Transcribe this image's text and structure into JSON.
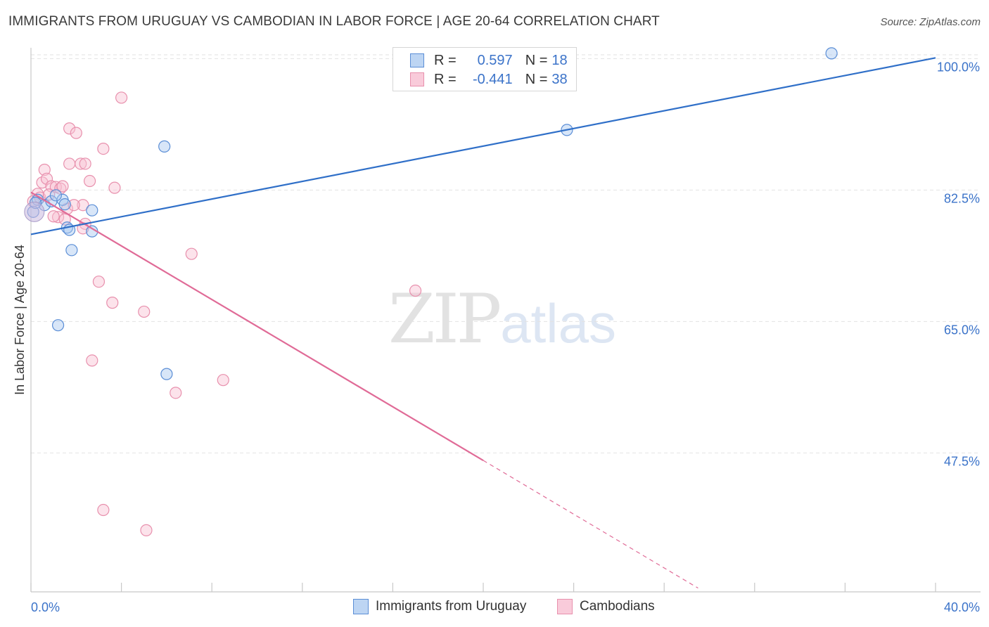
{
  "title": "IMMIGRANTS FROM URUGUAY VS CAMBODIAN IN LABOR FORCE | AGE 20-64 CORRELATION CHART",
  "source": "Source: ZipAtlas.com",
  "watermark": {
    "zip": "ZIP",
    "atlas": "atlas"
  },
  "legend": {
    "rows": [
      {
        "r_label": "R =",
        "r_value": "0.597",
        "n_label": "N =",
        "n_value": "18"
      },
      {
        "r_label": "R =",
        "r_value": "-0.441",
        "n_label": "N =",
        "n_value": "38"
      }
    ]
  },
  "colors": {
    "blue_fill": "#a8c8f0",
    "blue_stroke": "#5b8ed6",
    "blue_line": "#2f6fc8",
    "pink_fill": "#f8c0d2",
    "pink_stroke": "#e890ad",
    "pink_line": "#e06b97",
    "axis_text": "#3b73c9",
    "grid": "#e2e2e2"
  },
  "chart_data": {
    "type": "scatter",
    "title": "IMMIGRANTS FROM URUGUAY VS CAMBODIAN IN LABOR FORCE | AGE 20-64 CORRELATION CHART",
    "xlabel": "",
    "ylabel": "In Labor Force | Age 20-64",
    "xlim": [
      0,
      40
    ],
    "ylim": [
      29,
      102
    ],
    "x_tick_labels": [
      "0.0%",
      "40.0%"
    ],
    "y_ticks": [
      47.5,
      65.0,
      82.5,
      100.0
    ],
    "y_tick_labels": [
      "47.5%",
      "65.0%",
      "82.5%",
      "100.0%"
    ],
    "series": [
      {
        "name": "Immigrants from Uruguay",
        "color": "blue",
        "r": 0.597,
        "n": 18,
        "points": [
          [
            0.1,
            79.6
          ],
          [
            0.3,
            81.2
          ],
          [
            0.6,
            80.5
          ],
          [
            0.9,
            81.0
          ],
          [
            1.4,
            81.2
          ],
          [
            1.1,
            81.8
          ],
          [
            1.6,
            77.5
          ],
          [
            1.7,
            77.2
          ],
          [
            2.7,
            77.0
          ],
          [
            1.8,
            74.5
          ],
          [
            2.7,
            79.8
          ],
          [
            5.9,
            88.3
          ],
          [
            1.2,
            64.5
          ],
          [
            6.0,
            58.0
          ],
          [
            23.7,
            90.5
          ],
          [
            35.4,
            100.7
          ],
          [
            0.2,
            80.8
          ],
          [
            1.5,
            80.6
          ]
        ],
        "trend": {
          "x": [
            0,
            40
          ],
          "y": [
            76.6,
            100.1
          ]
        }
      },
      {
        "name": "Cambodians",
        "color": "pink",
        "r": -0.441,
        "n": 38,
        "points": [
          [
            0.1,
            81.0
          ],
          [
            0.3,
            82.0
          ],
          [
            0.4,
            81.5
          ],
          [
            0.5,
            83.5
          ],
          [
            0.6,
            85.2
          ],
          [
            0.7,
            84.0
          ],
          [
            0.9,
            83.0
          ],
          [
            1.1,
            82.9
          ],
          [
            1.3,
            82.7
          ],
          [
            1.4,
            83.0
          ],
          [
            1.7,
            90.7
          ],
          [
            2.0,
            90.1
          ],
          [
            1.7,
            86.0
          ],
          [
            2.2,
            86.0
          ],
          [
            2.4,
            86.0
          ],
          [
            2.6,
            83.7
          ],
          [
            3.2,
            88.0
          ],
          [
            3.7,
            82.8
          ],
          [
            4.0,
            94.8
          ],
          [
            2.3,
            80.5
          ],
          [
            1.6,
            80.0
          ],
          [
            1.2,
            78.9
          ],
          [
            1.5,
            78.6
          ],
          [
            2.4,
            78.0
          ],
          [
            2.3,
            77.4
          ],
          [
            7.1,
            74.0
          ],
          [
            3.0,
            70.3
          ],
          [
            3.6,
            67.5
          ],
          [
            5.0,
            66.3
          ],
          [
            17.0,
            69.1
          ],
          [
            2.7,
            59.8
          ],
          [
            8.5,
            57.2
          ],
          [
            6.4,
            55.5
          ],
          [
            3.2,
            39.9
          ],
          [
            5.1,
            37.2
          ],
          [
            0.8,
            81.9
          ],
          [
            1.0,
            79.0
          ],
          [
            1.9,
            80.5
          ]
        ],
        "trend": {
          "x": [
            0,
            20
          ],
          "y": [
            82.2,
            46.5
          ]
        },
        "trend_extrapolated": {
          "x": [
            20,
            29.5
          ],
          "y": [
            46.5,
            29.5
          ]
        }
      }
    ]
  }
}
